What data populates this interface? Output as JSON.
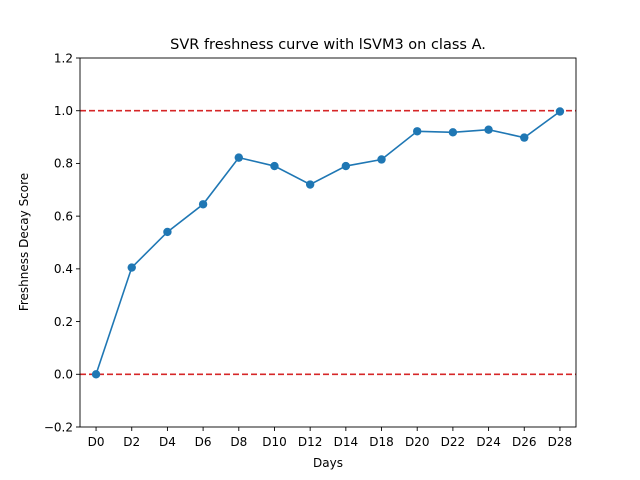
{
  "chart_data": {
    "type": "line",
    "title": "SVR freshness curve with lSVM3 on class A.",
    "xlabel": "Days",
    "ylabel": "Freshness Decay Score",
    "categories": [
      "D0",
      "D2",
      "D4",
      "D6",
      "D8",
      "D10",
      "D12",
      "D14",
      "D18",
      "D20",
      "D22",
      "D24",
      "D26",
      "D28"
    ],
    "series": [
      {
        "values": [
          0.0,
          0.405,
          0.54,
          0.645,
          0.822,
          0.79,
          0.72,
          0.79,
          0.815,
          0.922,
          0.918,
          0.928,
          0.898,
          0.997
        ],
        "color": "#1f77b4",
        "marker": "circle"
      }
    ],
    "ylim": [
      -0.2,
      1.2
    ],
    "yticks": [
      "−0.2",
      "0.0",
      "0.2",
      "0.4",
      "0.6",
      "0.8",
      "1.0",
      "1.2"
    ],
    "reference_lines": [
      {
        "y": 1.0,
        "color": "#d62728",
        "style": "dashed"
      },
      {
        "y": 0.0,
        "color": "#d62728",
        "style": "dashed"
      }
    ],
    "grid": false,
    "legend": "none"
  }
}
